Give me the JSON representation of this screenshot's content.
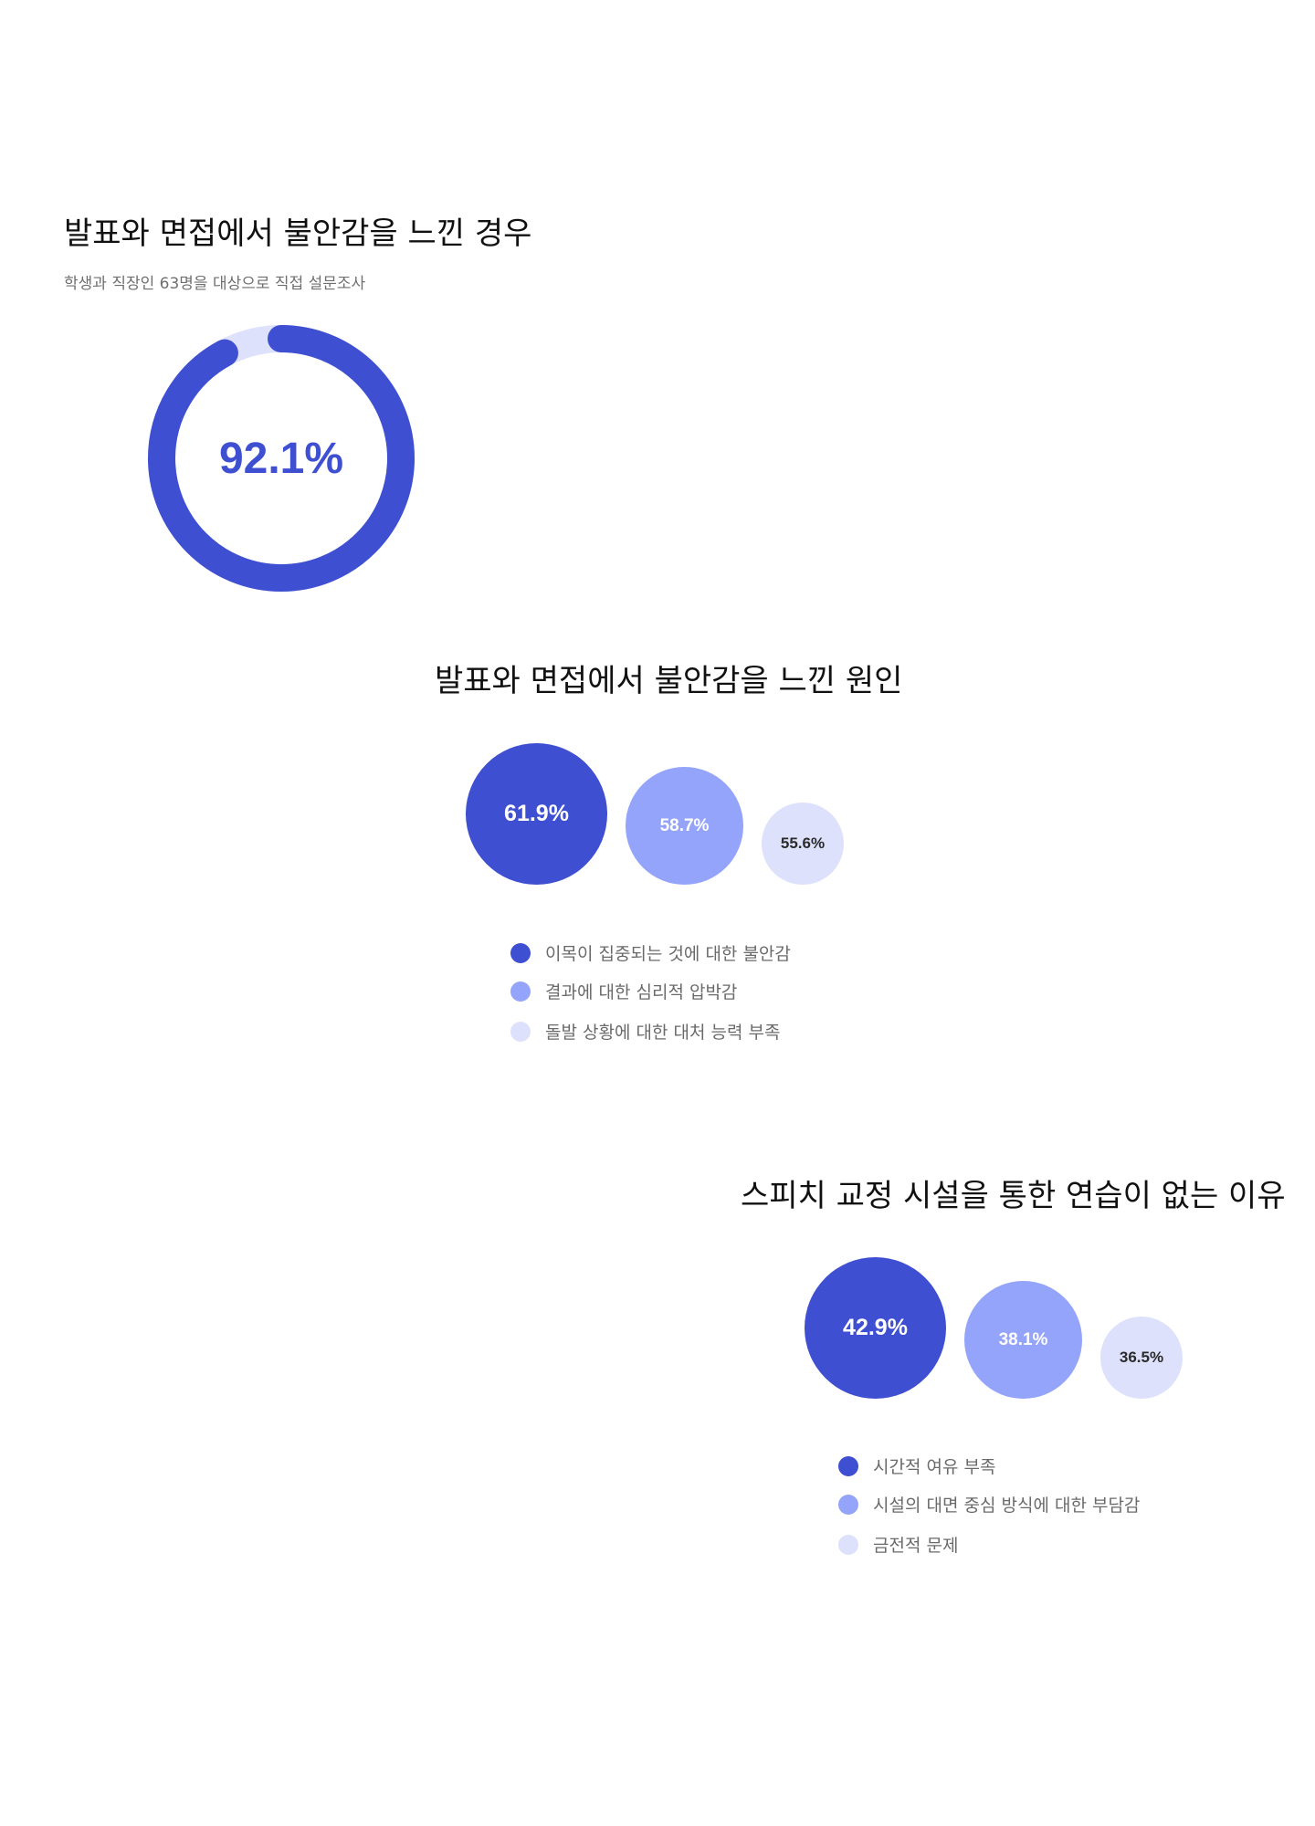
{
  "colors": {
    "primary": "#3e4fd1",
    "secondary": "#95a4fb",
    "tertiary": "#dde1fc",
    "track": "#dde1fc"
  },
  "section1": {
    "title": "발표와 면접에서 불안감을 느낀 경우",
    "subtitle": "학생과 직장인 63명을 대상으로 직접 설문조사"
  },
  "section2": {
    "title": "발표와 면접에서 불안감을 느낀 원인"
  },
  "section3": {
    "title": "스피치 교정 시설을 통한 연습이 없는 이유"
  },
  "chart_data": [
    {
      "type": "pie",
      "subtype": "donut",
      "values": [
        92.1
      ],
      "labels": [
        "92.1%"
      ],
      "max": 100
    },
    {
      "type": "bubble",
      "categories": [
        "이목이 집중되는 것에 대한 불안감",
        "결과에 대한 심리적 압박감",
        "돌발 상황에 대한 대처 능력 부족"
      ],
      "values": [
        61.9,
        58.7,
        55.6
      ],
      "labels": [
        "61.9%",
        "58.7%",
        "55.6%"
      ],
      "unit": "%",
      "legend": "bottom"
    },
    {
      "type": "bubble",
      "categories": [
        "시간적 여유 부족",
        "시설의 대면 중심 방식에 대한 부담감",
        "금전적 문제"
      ],
      "values": [
        42.9,
        38.1,
        36.5
      ],
      "labels": [
        "42.9%",
        "38.1%",
        "36.5%"
      ],
      "unit": "%",
      "legend": "bottom"
    }
  ]
}
